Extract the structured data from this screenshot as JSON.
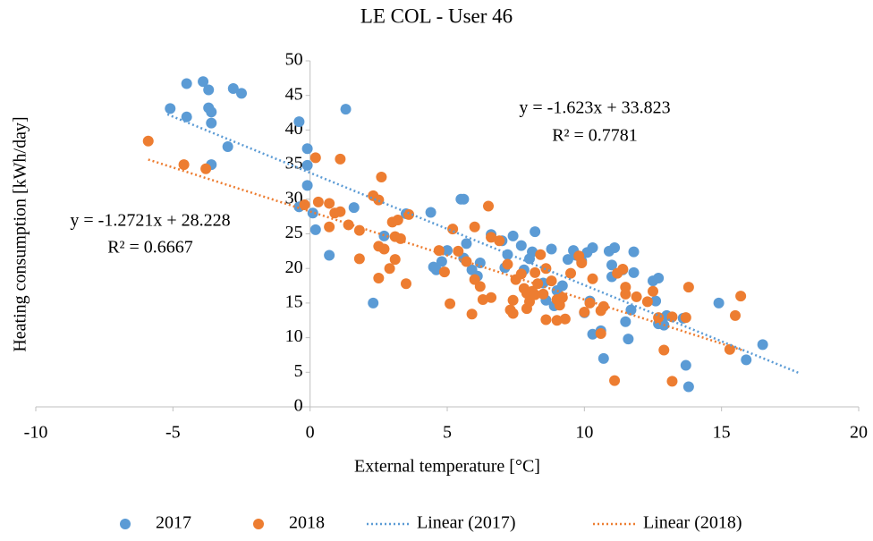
{
  "chart_data": {
    "type": "scatter",
    "title": "LE COL - User 46",
    "x_label": "External temperature [°C]",
    "y_label": "Heating consumption [kWh/day]",
    "xlim": [
      -10,
      20
    ],
    "xticks": [
      -10,
      -5,
      0,
      5,
      10,
      15,
      20
    ],
    "ylim": [
      0,
      50
    ],
    "yticks": [
      0,
      5,
      10,
      15,
      20,
      25,
      30,
      35,
      40,
      45,
      50
    ],
    "grid": false,
    "legend": "bottom",
    "series": [
      {
        "name": "2017",
        "color": "#5b9bd5",
        "x": [
          -4.5,
          -3.9,
          -3.7,
          -2.8,
          -2.5,
          -5.1,
          -3.7,
          -3.6,
          -4.5,
          -3.6,
          -0.4,
          1.3,
          -3.0,
          -3.6,
          -0.1,
          -0.1,
          -0.1,
          -0.4,
          0.1,
          0.2,
          0.7,
          1.6,
          2.3,
          2.7,
          3.5,
          4.4,
          4.5,
          4.6,
          4.8,
          5.0,
          5.5,
          5.6,
          5.7,
          5.6,
          5.9,
          6.2,
          6.1,
          6.6,
          7.0,
          7.1,
          7.2,
          7.4,
          7.7,
          7.8,
          8.2,
          8.0,
          8.1,
          8.5,
          8.8,
          8.9,
          9.0,
          9.2,
          9.6,
          9.7,
          9.9,
          10.1,
          10.2,
          10.3,
          10.3,
          10.6,
          10.7,
          10.9,
          11.0,
          11.1,
          11.0,
          11.4,
          11.5,
          11.6,
          11.8,
          11.8,
          11.7,
          12.5,
          12.7,
          12.6,
          12.7,
          12.9,
          13.0,
          13.6,
          13.7,
          13.8,
          14.9,
          15.9,
          16.5,
          8.6,
          10.0,
          9.4
        ],
        "values": [
          46.7,
          47,
          45.8,
          46,
          45.3,
          43.1,
          43.2,
          42.6,
          41.9,
          41,
          41.2,
          43,
          37.6,
          35,
          37.3,
          34.9,
          32,
          28.9,
          28,
          25.6,
          21.9,
          28.8,
          15,
          24.7,
          27.9,
          28.1,
          20.2,
          19.8,
          21,
          22.6,
          30,
          30,
          23.6,
          21.5,
          19.8,
          20.8,
          18.9,
          24.9,
          24,
          20.1,
          22,
          24.7,
          23.3,
          19.8,
          25.3,
          21.4,
          22.4,
          17.9,
          22.8,
          14.6,
          16.8,
          17.5,
          22.6,
          21.9,
          21.1,
          22.3,
          15.3,
          23,
          10.5,
          11,
          7,
          22.5,
          20.5,
          23,
          18.8,
          19.8,
          12.3,
          9.8,
          22.4,
          19.4,
          14,
          18.2,
          18.6,
          15.3,
          12,
          11.8,
          13.2,
          12.8,
          6,
          2.9,
          15,
          6.8,
          9,
          15.4,
          13.6,
          21.3
        ]
      },
      {
        "name": "2018",
        "color": "#ed7d31",
        "x": [
          -5.9,
          -4.6,
          -3.8,
          0.2,
          1.1,
          -0.2,
          0.3,
          0.7,
          0.9,
          1.1,
          1.4,
          0.7,
          1.8,
          1.8,
          2.3,
          2.5,
          2.6,
          2.5,
          2.7,
          2.9,
          3.0,
          3.2,
          3.6,
          3.1,
          3.3,
          3.1,
          3.5,
          2.5,
          4.7,
          4.9,
          5.2,
          5.1,
          5.4,
          5.7,
          6.0,
          6.0,
          5.9,
          6.2,
          6.3,
          6.5,
          6.6,
          6.6,
          6.9,
          7.2,
          7.3,
          7.4,
          7.4,
          7.5,
          7.7,
          7.8,
          7.9,
          7.9,
          8.0,
          8.1,
          8.2,
          8.3,
          8.4,
          8.5,
          8.6,
          8.6,
          8.8,
          9.0,
          9.1,
          9.2,
          9.3,
          9.0,
          9.5,
          9.8,
          10.0,
          10.2,
          10.3,
          10.6,
          10.7,
          10.6,
          11.1,
          11.2,
          11.4,
          11.5,
          11.5,
          11.9,
          12.3,
          12.5,
          12.7,
          12.9,
          13.2,
          13.2,
          13.7,
          13.8,
          15.3,
          15.5,
          15.7,
          9.9,
          8.2
        ],
        "values": [
          38.4,
          35,
          34.4,
          36,
          35.8,
          29.2,
          29.6,
          29.4,
          28,
          28.2,
          26.3,
          26.0,
          25.5,
          21.4,
          30.5,
          29.9,
          33.2,
          23.2,
          22.8,
          20,
          26.7,
          27,
          27.8,
          24.6,
          24.3,
          21.3,
          17.8,
          18.6,
          22.6,
          19.5,
          25.7,
          14.9,
          22.5,
          21,
          26,
          18.4,
          13.4,
          17.4,
          15.5,
          29,
          24.5,
          15.8,
          24,
          20.6,
          14,
          15.4,
          13.5,
          18.4,
          19.2,
          17.1,
          16.4,
          14.2,
          15.2,
          16.7,
          19.4,
          17.8,
          22.0,
          16.3,
          20,
          12.6,
          18.2,
          15.5,
          14.7,
          15.8,
          12.7,
          12.5,
          19.3,
          21.8,
          13.7,
          15,
          18.5,
          10.6,
          14.5,
          13.9,
          3.8,
          19.3,
          19.9,
          17.3,
          16.3,
          15.9,
          15.2,
          16.7,
          12.9,
          8.2,
          3.7,
          13,
          12.9,
          17.3,
          8.3,
          13.2,
          16,
          20.8,
          16.2
        ]
      }
    ],
    "trendlines": [
      {
        "name": "Linear (2017)",
        "color": "#5b9bd5",
        "slope": -1.623,
        "intercept": 33.823,
        "x_range": [
          -5.2,
          17.8
        ],
        "equation": "y = -1.623x + 33.823",
        "r2": "R² = 0.7781"
      },
      {
        "name": "Linear (2018)",
        "color": "#ed7d31",
        "slope": -1.2721,
        "intercept": 28.228,
        "x_range": [
          -5.9,
          15.8
        ],
        "equation": "y = -1.2721x + 28.228",
        "r2": "R² = 0.6667"
      }
    ]
  }
}
